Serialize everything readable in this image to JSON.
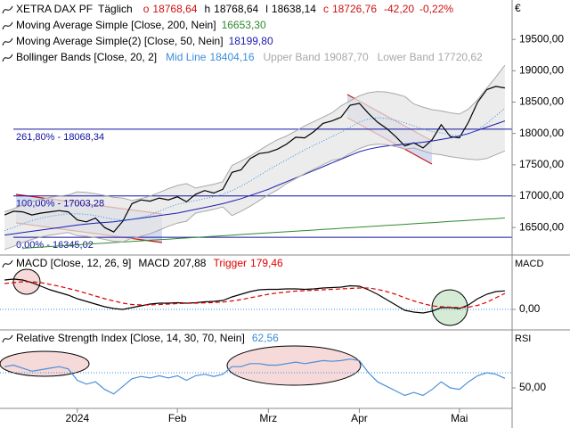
{
  "chart_data": [
    {
      "type": "line",
      "interval": "Täglich",
      "quote": [
        {
          "label": "o",
          "value": "18768,64"
        },
        {
          "label": "h",
          "value": "18768,64"
        },
        {
          "label": "l",
          "value": "18638,14"
        },
        {
          "label": "c",
          "value": "18726,76"
        }
      ],
      "change": "-42,20",
      "change_pct": "-0,22%",
      "indicator_label": "Bollinger Bands [Close, 20, 2]",
      "axis_title": "€",
      "categories": [
        null,
        null,
        null,
        null,
        null,
        null,
        null,
        null,
        "2024",
        null,
        null,
        null,
        null,
        null,
        null,
        null,
        null,
        null,
        null,
        "Feb",
        null,
        null,
        null,
        null,
        null,
        null,
        null,
        null,
        null,
        "Mrz",
        null,
        null,
        null,
        null,
        null,
        null,
        null,
        null,
        null,
        "Apr",
        null,
        null,
        null,
        null,
        null,
        null,
        null,
        null,
        null,
        null,
        "Mai",
        null,
        null,
        null,
        null,
        null
      ],
      "series": [
        {
          "name": "XETRA DAX PF",
          "color": "#000000",
          "values": [
            16700,
            16760,
            16750,
            16700,
            16730,
            16750,
            16770,
            16750,
            16620,
            16590,
            16650,
            16500,
            16430,
            16600,
            16880,
            16940,
            16920,
            16970,
            16940,
            16990,
            16910,
            17030,
            17090,
            17050,
            17110,
            17380,
            17420,
            17600,
            17680,
            17700,
            17750,
            17830,
            17940,
            17930,
            18030,
            18160,
            18200,
            18260,
            18450,
            18480,
            18320,
            18180,
            18080,
            17950,
            17800,
            17850,
            17770,
            17900,
            18140,
            17950,
            17930,
            18180,
            18500,
            18700,
            18750,
            18726.76
          ]
        },
        {
          "name": "Moving Average Simple [Close, 200, Nein]",
          "color": "#2e8b2e",
          "last_label": "16653,30",
          "values": [
            null,
            null,
            16170,
            16179,
            16188,
            16197,
            16206,
            16215,
            16224,
            16233,
            16242,
            16251,
            16260,
            16269,
            16279,
            16288,
            16297,
            16306,
            16315,
            16324,
            16333,
            16342,
            16351,
            16360,
            16369,
            16378,
            16388,
            16397,
            16406,
            16415,
            16424,
            16433,
            16442,
            16451,
            16460,
            16469,
            16478,
            16488,
            16497,
            16506,
            16515,
            16524,
            16533,
            16542,
            16551,
            16560,
            16569,
            16578,
            16587,
            16597,
            16606,
            16615,
            16624,
            16633,
            16642,
            16653.3
          ]
        },
        {
          "name": "Moving Average Simple(2) [Close, 50, Nein]",
          "color": "#1c1cb0",
          "last_label": "18199,80",
          "values": [
            16380,
            16400,
            16420,
            16440,
            16460,
            16480,
            16500,
            16520,
            16540,
            16555,
            16570,
            16580,
            16590,
            16610,
            16630,
            16650,
            16670,
            16690,
            16710,
            16730,
            16760,
            16790,
            16820,
            16850,
            16880,
            16920,
            16960,
            17010,
            17060,
            17110,
            17170,
            17230,
            17290,
            17350,
            17410,
            17470,
            17530,
            17590,
            17650,
            17710,
            17750,
            17780,
            17800,
            17815,
            17830,
            17845,
            17860,
            17880,
            17905,
            17930,
            17960,
            18000,
            18050,
            18100,
            18150,
            18199.8
          ]
        },
        {
          "name": "Mid Line",
          "color": "#3a8fdb",
          "dash": "dotted",
          "last_label": "18404,16",
          "values": [
            16450,
            16500,
            16560,
            16610,
            16650,
            16680,
            16700,
            16720,
            16720,
            16710,
            16690,
            16660,
            16630,
            16620,
            16630,
            16660,
            16700,
            16760,
            16820,
            16870,
            16900,
            16930,
            16960,
            16990,
            17030,
            17090,
            17160,
            17240,
            17330,
            17420,
            17500,
            17580,
            17660,
            17740,
            17810,
            17880,
            17950,
            18020,
            18100,
            18180,
            18230,
            18250,
            18240,
            18210,
            18170,
            18120,
            18070,
            18030,
            18010,
            17980,
            17960,
            17990,
            18060,
            18160,
            18280,
            18404.16
          ]
        },
        {
          "name": "Upper Band",
          "color": "#a8a8a8",
          "last_label": "19087,70",
          "values": [
            16750,
            16800,
            16860,
            16910,
            16950,
            16980,
            17000,
            17020,
            17070,
            17060,
            17040,
            17010,
            16980,
            16970,
            16930,
            16960,
            17000,
            17060,
            17120,
            17170,
            17200,
            17130,
            17160,
            17190,
            17230,
            17490,
            17560,
            17640,
            17730,
            17820,
            17900,
            17960,
            18040,
            18120,
            18190,
            18260,
            18330,
            18440,
            18520,
            18600,
            18650,
            18670,
            18660,
            18630,
            18590,
            18470,
            18420,
            18380,
            18360,
            18330,
            18310,
            18390,
            18540,
            18720,
            18900,
            19087.7
          ]
        },
        {
          "name": "Lower Band",
          "color": "#a8a8a8",
          "last_label": "17720,62",
          "values": [
            16150,
            16200,
            16260,
            16310,
            16350,
            16380,
            16400,
            16420,
            16370,
            16360,
            16340,
            16310,
            16280,
            16270,
            16330,
            16360,
            16400,
            16460,
            16520,
            16570,
            16600,
            16730,
            16760,
            16790,
            16830,
            16690,
            16760,
            16840,
            16930,
            17020,
            17100,
            17200,
            17280,
            17360,
            17430,
            17500,
            17570,
            17600,
            17680,
            17760,
            17810,
            17830,
            17820,
            17790,
            17750,
            17770,
            17720,
            17680,
            17660,
            17630,
            17610,
            17590,
            17580,
            17600,
            17660,
            17720.62
          ]
        }
      ],
      "levels": [
        {
          "value": 18068.34,
          "label": "261,80% - 18068,34"
        },
        {
          "value": 17003.28,
          "label": "100,00% - 17003,28"
        },
        {
          "value": 16345.02,
          "label": "0,00% - 16345,02"
        }
      ],
      "level_color": "#1010a0",
      "ylim": [
        16090,
        20100
      ],
      "yticks": [
        {
          "value": 19500,
          "label": "19500,00"
        },
        {
          "value": 19000,
          "label": "19000,00"
        },
        {
          "value": 18500,
          "label": "18500,00"
        },
        {
          "value": 18000,
          "label": "18000,00"
        },
        {
          "value": 17500,
          "label": "17500,00"
        },
        {
          "value": 17000,
          "label": "17000,00"
        },
        {
          "value": 16500,
          "label": "16500,00"
        }
      ],
      "grid": false
    },
    {
      "type": "line",
      "title": "MACD [Close, 12, 26, 9]",
      "axis_title": "MACD",
      "series": [
        {
          "name": "MACD",
          "color": "#000000",
          "last_label": "207,88",
          "values": [
            330,
            340,
            330,
            300,
            260,
            220,
            190,
            160,
            120,
            90,
            60,
            30,
            10,
            0,
            20,
            40,
            60,
            70,
            70,
            75,
            70,
            75,
            85,
            90,
            100,
            140,
            170,
            200,
            220,
            225,
            225,
            230,
            230,
            225,
            230,
            240,
            245,
            250,
            265,
            260,
            220,
            170,
            110,
            50,
            -10,
            -30,
            -40,
            -20,
            20,
            20,
            10,
            50,
            120,
            170,
            200,
            207.88
          ]
        },
        {
          "name": "Trigger",
          "color": "#e00000",
          "dash": "dashed",
          "last_label": "179,46",
          "values": [
            290,
            300,
            310,
            310,
            300,
            280,
            260,
            235,
            210,
            180,
            150,
            120,
            95,
            70,
            55,
            50,
            50,
            55,
            60,
            65,
            68,
            70,
            73,
            77,
            82,
            95,
            110,
            130,
            150,
            170,
            185,
            195,
            205,
            210,
            215,
            220,
            225,
            230,
            235,
            240,
            240,
            225,
            200,
            170,
            130,
            95,
            65,
            40,
            30,
            25,
            20,
            25,
            45,
            80,
            130,
            179.46
          ]
        }
      ],
      "ylim": [
        -210,
        590
      ],
      "yticks": [
        {
          "value": 0,
          "label": "0,00"
        }
      ],
      "grid": true
    },
    {
      "type": "line",
      "title": "Relative Strength Index [Close, 14, 30, 70, Nein]",
      "axis_title": "RSI",
      "series": [
        {
          "color": "#4a90d9",
          "last_label": "62,56",
          "values": [
            78,
            80,
            76,
            72,
            74,
            76,
            78,
            75,
            60,
            55,
            58,
            48,
            42,
            52,
            62,
            65,
            63,
            66,
            63,
            66,
            60,
            66,
            68,
            65,
            68,
            78,
            78,
            82,
            82,
            80,
            80,
            82,
            84,
            82,
            84,
            86,
            85,
            86,
            88,
            86,
            70,
            58,
            52,
            46,
            40,
            44,
            40,
            48,
            58,
            50,
            48,
            58,
            66,
            70,
            68,
            62.56
          ]
        }
      ],
      "levels": [
        70
      ],
      "level_color": "#3a8fdb",
      "ylim": [
        23,
        124
      ],
      "yticks": [
        {
          "value": 50,
          "label": "50,00"
        }
      ],
      "grid": false
    }
  ]
}
